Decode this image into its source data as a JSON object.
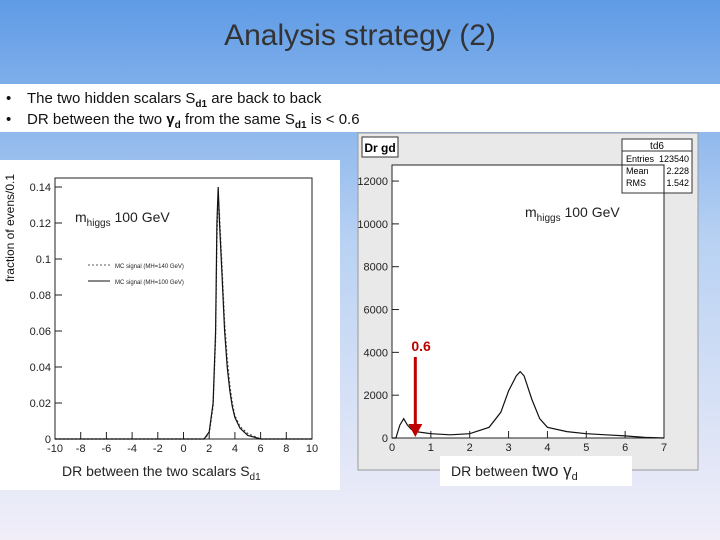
{
  "title": "Analysis strategy (2)",
  "bullets": [
    [
      "The two  hidden scalars S",
      "d1",
      " are back to back"
    ],
    [
      "DR between the two ",
      "γ",
      "d",
      " from the same S",
      "d1",
      " is < 0.6"
    ]
  ],
  "chart_data": [
    {
      "type": "line",
      "ylabel": "fraction of evens/0.1",
      "annotation": {
        "main": "m",
        "sub": "higgs",
        "rest": " 100 GeV"
      },
      "caption": [
        "DR between the two scalars  S",
        "d1"
      ],
      "x": [
        -10,
        1.6,
        2.0,
        2.3,
        2.5,
        2.6,
        2.7,
        2.8,
        3.0,
        3.2,
        3.4,
        3.6,
        3.8,
        4.0,
        4.4,
        5.0,
        6.0,
        10
      ],
      "series": [
        {
          "name": "MC signal (MH=140 GeV)",
          "color": "#555555",
          "dash": true,
          "values": [
            0,
            0,
            0.003,
            0.018,
            0.055,
            0.11,
            0.135,
            0.125,
            0.095,
            0.065,
            0.045,
            0.03,
            0.02,
            0.013,
            0.007,
            0.003,
            0,
            0
          ]
        },
        {
          "name": "MC signal (MH=100 GeV)",
          "color": "#111111",
          "dash": false,
          "values": [
            0,
            0,
            0.004,
            0.02,
            0.06,
            0.12,
            0.14,
            0.12,
            0.09,
            0.06,
            0.04,
            0.027,
            0.018,
            0.012,
            0.006,
            0.002,
            0,
            0
          ]
        }
      ],
      "xlim": [
        -10,
        10
      ],
      "xticks": [
        -10,
        -8,
        -6,
        -4,
        -2,
        0,
        2,
        4,
        6,
        8,
        10
      ],
      "ylim": [
        0,
        0.145
      ],
      "yticks": [
        0,
        0.02,
        0.04,
        0.06,
        0.08,
        0.1,
        0.12,
        0.14
      ]
    },
    {
      "type": "line",
      "title": "Dr gd",
      "stats": {
        "title": "td6",
        "rows": [
          {
            "label": "Entries",
            "value": 123540
          },
          {
            "label": "Mean",
            "value": 2.228
          },
          {
            "label": "RMS",
            "value": 1.542
          }
        ]
      },
      "annotation": {
        "main": "m",
        "sub": "higgs",
        "rest": " 100 GeV"
      },
      "cut": 0.6,
      "caption": [
        "DR between ",
        "two ",
        "γ",
        "d"
      ],
      "x": [
        0,
        0.1,
        0.2,
        0.3,
        0.4,
        0.5,
        0.6,
        0.8,
        1.0,
        1.5,
        2.0,
        2.5,
        2.8,
        3.0,
        3.2,
        3.3,
        3.4,
        3.6,
        3.8,
        4.0,
        4.5,
        5.0,
        5.5,
        6.0,
        6.5,
        7
      ],
      "series": [
        {
          "color": "#111111",
          "dash": false,
          "values": [
            0,
            0,
            600,
            900,
            600,
            400,
            300,
            250,
            200,
            150,
            200,
            500,
            1200,
            2200,
            2900,
            3100,
            2900,
            1800,
            900,
            500,
            300,
            200,
            150,
            100,
            30,
            0
          ]
        }
      ],
      "xlim": [
        0,
        7
      ],
      "xticks": [
        0,
        1,
        2,
        3,
        4,
        5,
        6,
        7
      ],
      "ylim": [
        0,
        12750
      ],
      "yticks": [
        0,
        2000,
        4000,
        6000,
        8000,
        10000,
        12000
      ]
    }
  ]
}
